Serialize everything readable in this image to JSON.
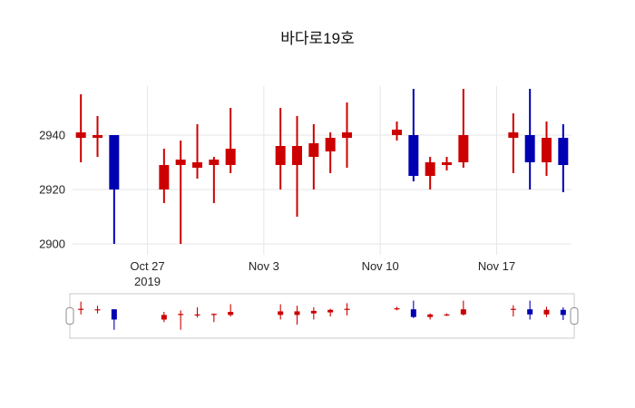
{
  "chart_data": {
    "type": "candlestick",
    "title": "바다로19호",
    "increasing_color": "#cc0000",
    "decreasing_color": "#0000b3",
    "background_color": "#ffffff",
    "grid": true,
    "rangeslider": true,
    "ylim": [
      2896,
      2958
    ],
    "yticks": [
      2900,
      2920,
      2940
    ],
    "xticks": [
      {
        "date": "2019-10-27",
        "label": "Oct 27",
        "sublabel": "2019"
      },
      {
        "date": "2019-11-03",
        "label": "Nov 3"
      },
      {
        "date": "2019-11-10",
        "label": "Nov 10"
      },
      {
        "date": "2019-11-17",
        "label": "Nov 17"
      }
    ],
    "dates": [
      "2019-10-23",
      "2019-10-24",
      "2019-10-25",
      "2019-10-28",
      "2019-10-29",
      "2019-10-30",
      "2019-10-31",
      "2019-11-01",
      "2019-11-04",
      "2019-11-05",
      "2019-11-06",
      "2019-11-07",
      "2019-11-08",
      "2019-11-11",
      "2019-11-12",
      "2019-11-13",
      "2019-11-14",
      "2019-11-15",
      "2019-11-18",
      "2019-11-19",
      "2019-11-20",
      "2019-11-21"
    ],
    "open": [
      2939,
      2939,
      2940,
      2920,
      2929,
      2928,
      2929,
      2929,
      2929,
      2929,
      2932,
      2934,
      2939,
      2940,
      2940,
      2925,
      2929,
      2930,
      2939,
      2940,
      2930,
      2939
    ],
    "high": [
      2955,
      2947,
      2940,
      2935,
      2938,
      2944,
      2932,
      2950,
      2950,
      2947,
      2944,
      2941,
      2952,
      2945,
      2957,
      2932,
      2932,
      2957,
      2948,
      2957,
      2945,
      2944
    ],
    "low": [
      2930,
      2932,
      2900,
      2915,
      2900,
      2924,
      2915,
      2926,
      2920,
      2910,
      2920,
      2926,
      2928,
      2938,
      2923,
      2920,
      2927,
      2928,
      2926,
      2920,
      2925,
      2919
    ],
    "close": [
      2941,
      2940,
      2920,
      2929,
      2931,
      2930,
      2931,
      2935,
      2936,
      2936,
      2937,
      2939,
      2941,
      2942,
      2925,
      2930,
      2930,
      2940,
      2941,
      2930,
      2939,
      2929
    ]
  }
}
